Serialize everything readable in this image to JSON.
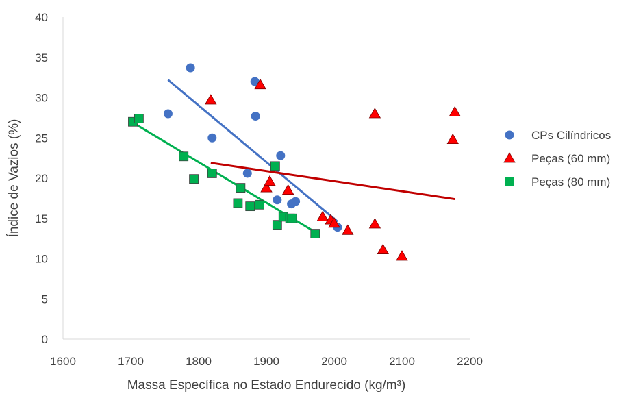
{
  "chart_data": {
    "type": "scatter",
    "title": "",
    "xlabel": "Massa Específica no Estado Endurecido (kg/m³)",
    "ylabel": "Índice de Vazios (%)",
    "xlim": [
      1600,
      2200
    ],
    "ylim": [
      0,
      40
    ],
    "xticks": [
      1600,
      1700,
      1800,
      1900,
      2000,
      2100,
      2200
    ],
    "yticks": [
      0,
      5,
      10,
      15,
      20,
      25,
      30,
      35,
      40
    ],
    "grid": false,
    "legend_position": "right",
    "series": [
      {
        "name": "CPs Cilíndricos",
        "marker": "circle",
        "color": "#4472C4",
        "trendline_color": "#4472C4",
        "points": [
          [
            1755,
            28.0
          ],
          [
            1788,
            33.7
          ],
          [
            1820,
            25.0
          ],
          [
            1872,
            20.6
          ],
          [
            1883,
            32.0
          ],
          [
            1884,
            27.7
          ],
          [
            1916,
            17.3
          ],
          [
            1921,
            22.8
          ],
          [
            1937,
            16.8
          ],
          [
            1943,
            17.1
          ],
          [
            2005,
            13.9
          ]
        ],
        "trendline": [
          [
            1755,
            32.2
          ],
          [
            2005,
            14.6
          ]
        ]
      },
      {
        "name": "Peças (60 mm)",
        "marker": "triangle",
        "color": "#FF0000",
        "trendline_color": "#C00000",
        "points": [
          [
            1818,
            29.7
          ],
          [
            1891,
            31.6
          ],
          [
            1900,
            18.8
          ],
          [
            1905,
            19.6
          ],
          [
            1932,
            18.5
          ],
          [
            1983,
            15.2
          ],
          [
            1995,
            14.8
          ],
          [
            2000,
            14.4
          ],
          [
            2020,
            13.5
          ],
          [
            2060,
            28.0
          ],
          [
            2060,
            14.3
          ],
          [
            2072,
            11.1
          ],
          [
            2100,
            10.3
          ],
          [
            2175,
            24.8
          ],
          [
            2178,
            28.2
          ]
        ],
        "trendline": [
          [
            1818,
            21.9
          ],
          [
            2178,
            17.4
          ]
        ]
      },
      {
        "name": "Peças (80 mm)",
        "marker": "square",
        "color": "#00B050",
        "trendline_color": "#00B050",
        "points": [
          [
            1703,
            27.0
          ],
          [
            1712,
            27.4
          ],
          [
            1778,
            22.7
          ],
          [
            1793,
            19.9
          ],
          [
            1820,
            20.6
          ],
          [
            1858,
            16.9
          ],
          [
            1862,
            18.8
          ],
          [
            1876,
            16.5
          ],
          [
            1890,
            16.7
          ],
          [
            1913,
            21.5
          ],
          [
            1916,
            14.2
          ],
          [
            1925,
            15.2
          ],
          [
            1935,
            15.0
          ],
          [
            1938,
            15.0
          ],
          [
            1972,
            13.1
          ]
        ],
        "trendline": [
          [
            1703,
            26.9
          ],
          [
            1972,
            13.3
          ]
        ]
      }
    ]
  }
}
